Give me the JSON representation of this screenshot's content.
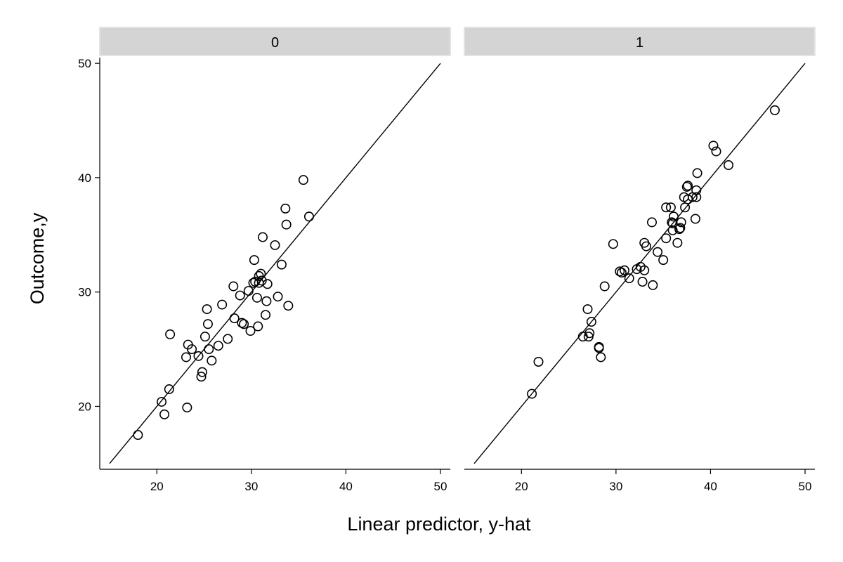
{
  "chart_data": {
    "type": "scatter",
    "xlabel": "Linear predictor, y-hat",
    "ylabel": "Outcome,y",
    "xlim": [
      15,
      50
    ],
    "ylim": [
      14.5,
      50.5
    ],
    "xticks": [
      20,
      30,
      40,
      50
    ],
    "yticks": [
      20,
      30,
      40,
      50
    ],
    "reference_line": {
      "x": [
        15,
        50
      ],
      "y": [
        15,
        50
      ]
    },
    "grid": false,
    "strip_color": "#d4d4d4",
    "panels": [
      {
        "label": "0",
        "points": [
          [
            18.0,
            17.5
          ],
          [
            20.5,
            20.4
          ],
          [
            20.8,
            19.3
          ],
          [
            21.3,
            21.5
          ],
          [
            21.4,
            26.3
          ],
          [
            23.1,
            24.3
          ],
          [
            23.2,
            19.9
          ],
          [
            23.3,
            25.4
          ],
          [
            23.7,
            25.0
          ],
          [
            24.4,
            24.4
          ],
          [
            24.7,
            22.6
          ],
          [
            24.8,
            23.0
          ],
          [
            25.1,
            26.1
          ],
          [
            25.3,
            28.5
          ],
          [
            25.4,
            27.2
          ],
          [
            25.5,
            25.0
          ],
          [
            25.8,
            24.0
          ],
          [
            26.5,
            25.3
          ],
          [
            26.9,
            28.9
          ],
          [
            27.5,
            25.9
          ],
          [
            28.1,
            30.5
          ],
          [
            28.2,
            27.7
          ],
          [
            28.8,
            29.7
          ],
          [
            29.0,
            27.3
          ],
          [
            29.2,
            27.2
          ],
          [
            29.7,
            30.1
          ],
          [
            29.9,
            26.6
          ],
          [
            30.2,
            30.8
          ],
          [
            30.3,
            32.8
          ],
          [
            30.4,
            30.9
          ],
          [
            30.6,
            29.5
          ],
          [
            30.7,
            27.0
          ],
          [
            30.8,
            31.4
          ],
          [
            30.8,
            30.8
          ],
          [
            31.0,
            31.6
          ],
          [
            31.1,
            31.0
          ],
          [
            31.2,
            34.8
          ],
          [
            31.5,
            28.0
          ],
          [
            31.6,
            29.2
          ],
          [
            31.7,
            30.7
          ],
          [
            32.5,
            34.1
          ],
          [
            32.8,
            29.6
          ],
          [
            33.2,
            32.4
          ],
          [
            33.6,
            37.3
          ],
          [
            33.7,
            35.9
          ],
          [
            33.9,
            28.8
          ],
          [
            35.5,
            39.8
          ],
          [
            36.1,
            36.6
          ]
        ]
      },
      {
        "label": "1",
        "points": [
          [
            21.1,
            21.1
          ],
          [
            21.8,
            23.9
          ],
          [
            26.5,
            26.1
          ],
          [
            27.0,
            28.5
          ],
          [
            27.1,
            26.1
          ],
          [
            27.2,
            26.4
          ],
          [
            27.4,
            27.4
          ],
          [
            28.2,
            25.2
          ],
          [
            28.2,
            25.1
          ],
          [
            28.4,
            24.3
          ],
          [
            28.8,
            30.5
          ],
          [
            29.7,
            34.2
          ],
          [
            30.4,
            31.8
          ],
          [
            30.6,
            31.7
          ],
          [
            30.9,
            31.9
          ],
          [
            31.4,
            31.2
          ],
          [
            32.2,
            32.0
          ],
          [
            32.6,
            32.2
          ],
          [
            32.8,
            30.9
          ],
          [
            33.0,
            34.3
          ],
          [
            33.0,
            31.9
          ],
          [
            33.2,
            34.0
          ],
          [
            33.8,
            36.1
          ],
          [
            33.9,
            30.6
          ],
          [
            34.4,
            33.5
          ],
          [
            35.0,
            32.8
          ],
          [
            35.3,
            34.7
          ],
          [
            35.3,
            37.4
          ],
          [
            35.8,
            37.4
          ],
          [
            35.9,
            36.1
          ],
          [
            36.0,
            35.4
          ],
          [
            36.0,
            36.0
          ],
          [
            36.1,
            36.6
          ],
          [
            36.5,
            34.3
          ],
          [
            36.7,
            35.5
          ],
          [
            36.8,
            35.6
          ],
          [
            36.9,
            36.1
          ],
          [
            37.2,
            38.3
          ],
          [
            37.3,
            37.4
          ],
          [
            37.5,
            39.2
          ],
          [
            37.6,
            39.3
          ],
          [
            37.6,
            38.1
          ],
          [
            38.1,
            38.3
          ],
          [
            38.4,
            36.4
          ],
          [
            38.5,
            38.3
          ],
          [
            38.5,
            38.9
          ],
          [
            38.6,
            40.4
          ],
          [
            40.3,
            42.8
          ],
          [
            40.6,
            42.3
          ],
          [
            41.9,
            41.1
          ],
          [
            46.8,
            45.9
          ]
        ]
      }
    ]
  }
}
